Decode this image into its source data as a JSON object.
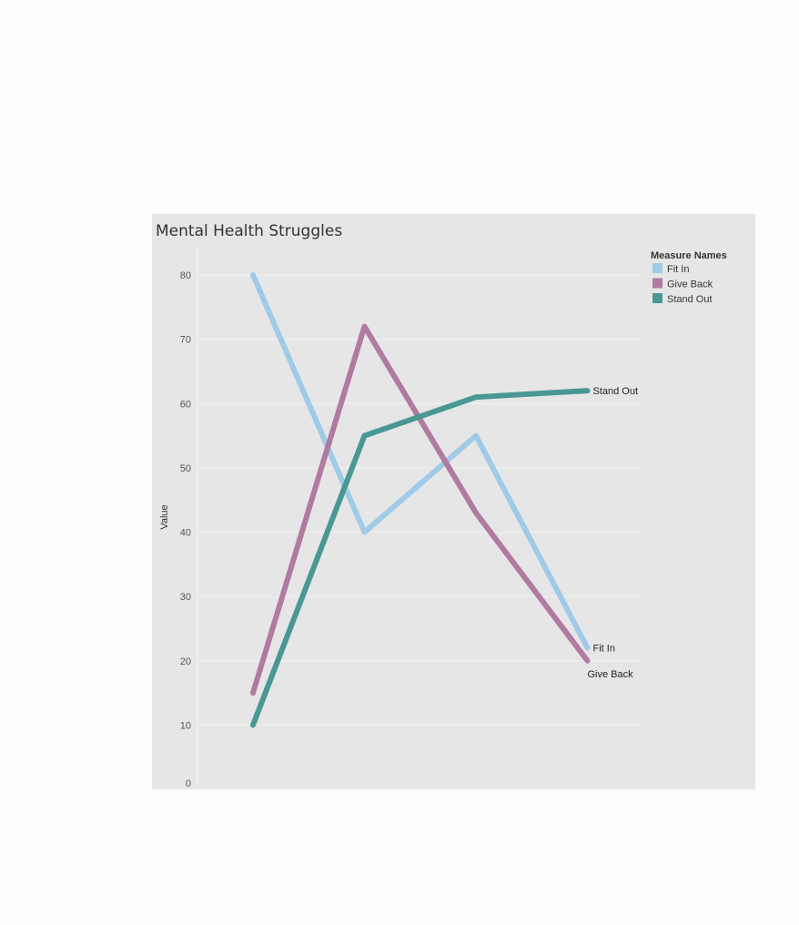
{
  "chart_data": {
    "type": "line",
    "title": "Mental Health Struggles",
    "xlabel": "",
    "ylabel": "Value",
    "ylim": [
      0,
      80
    ],
    "yticks": [
      0,
      10,
      20,
      30,
      40,
      50,
      60,
      70,
      80
    ],
    "x": [
      1,
      2,
      3,
      4
    ],
    "grid": true,
    "legend": {
      "title": "Measure Names",
      "placement": "top-right"
    },
    "series": [
      {
        "name": "Fit In",
        "color": "#a0cbe8",
        "values": [
          80,
          40,
          55,
          22
        ]
      },
      {
        "name": "Give Back",
        "color": "#b07aa1",
        "values": [
          15,
          72,
          43,
          20
        ]
      },
      {
        "name": "Stand Out",
        "color": "#499894",
        "values": [
          10,
          55,
          61,
          62
        ]
      }
    ]
  }
}
